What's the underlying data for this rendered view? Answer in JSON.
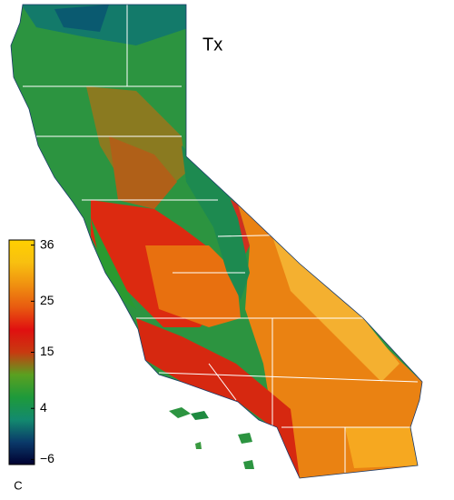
{
  "title": "Tx",
  "colorbar": {
    "limits": [
      -7,
      37
    ],
    "ticks": [
      36,
      25,
      15,
      4,
      {
        "value": -6,
        "label": "−6"
      }
    ],
    "unit": "C",
    "colors": [
      "#000030",
      "#0a3a6a",
      "#138a6e",
      "#1e9a3a",
      "#5aa020",
      "#c83a10",
      "#e01010",
      "#e85a10",
      "#f09010",
      "#f8c010",
      "#ffd000"
    ]
  }
}
